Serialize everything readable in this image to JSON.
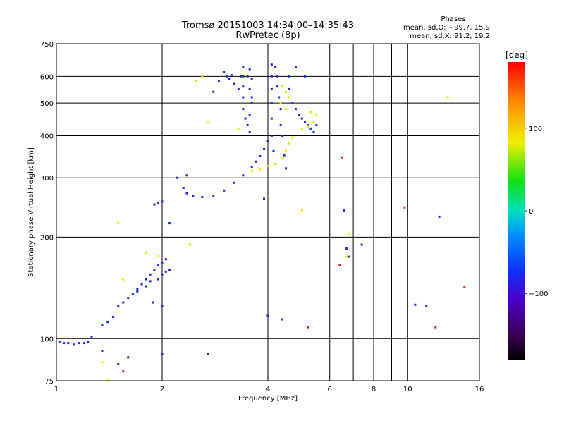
{
  "chart_data": {
    "type": "scatter",
    "title": "Tromsø 20151003 14:34:00–14:35:43",
    "subtitle": "RwPretec (8p)",
    "xlabel": "Frequency [MHz]",
    "ylabel": "Stationary phase Virtual Height [km]",
    "x_scale": "log",
    "y_scale": "log",
    "xlim": [
      1,
      16
    ],
    "ylim": [
      75,
      750
    ],
    "x_ticks": [
      1,
      2,
      4,
      6,
      8,
      10,
      16
    ],
    "x_tick_labels": [
      "1",
      "2",
      "4",
      "6",
      "8",
      "10",
      "16"
    ],
    "x_minor_lines": [
      7,
      9
    ],
    "y_ticks": [
      75,
      100,
      200,
      300,
      400,
      500,
      600,
      750
    ],
    "y_tick_labels": [
      "75",
      "100",
      "200",
      "300",
      "400",
      "500",
      "600",
      "750"
    ],
    "grid": true,
    "legend": {
      "header": "Phases",
      "lines": [
        "mean, sd,O: −99.7, 15.9",
        "mean, sd,X:  91.2, 19.2"
      ]
    },
    "colorbar": {
      "label": "[deg]",
      "range": [
        -180,
        180
      ],
      "ticks": [
        100,
        0,
        -100
      ],
      "tick_labels": [
        "100",
        "0",
        "−100"
      ]
    },
    "series": [
      {
        "phase": "O",
        "color": "#1a2ee0",
        "points": [
          [
            1.02,
            98
          ],
          [
            1.05,
            97
          ],
          [
            1.08,
            97
          ],
          [
            1.12,
            96
          ],
          [
            1.16,
            97
          ],
          [
            1.2,
            97
          ],
          [
            1.23,
            98
          ],
          [
            1.26,
            101
          ],
          [
            1.35,
            110
          ],
          [
            1.4,
            112
          ],
          [
            1.45,
            116
          ],
          [
            1.5,
            125
          ],
          [
            1.55,
            128
          ],
          [
            1.6,
            132
          ],
          [
            1.65,
            136
          ],
          [
            1.7,
            140
          ],
          [
            1.75,
            145
          ],
          [
            1.8,
            150
          ],
          [
            1.85,
            155
          ],
          [
            1.9,
            160
          ],
          [
            1.95,
            165
          ],
          [
            2.0,
            168
          ],
          [
            2.05,
            172
          ],
          [
            1.7,
            138
          ],
          [
            1.8,
            143
          ],
          [
            1.85,
            148
          ],
          [
            1.95,
            150
          ],
          [
            2.0,
            155
          ],
          [
            2.05,
            158
          ],
          [
            2.1,
            160
          ],
          [
            1.88,
            128
          ],
          [
            2.0,
            125
          ],
          [
            1.9,
            250
          ],
          [
            1.95,
            252
          ],
          [
            2.0,
            255
          ],
          [
            2.3,
            280
          ],
          [
            2.35,
            270
          ],
          [
            2.45,
            265
          ],
          [
            2.6,
            263
          ],
          [
            2.8,
            265
          ],
          [
            3.0,
            275
          ],
          [
            3.2,
            290
          ],
          [
            3.4,
            305
          ],
          [
            3.6,
            322
          ],
          [
            3.7,
            335
          ],
          [
            3.8,
            348
          ],
          [
            3.9,
            365
          ],
          [
            4.0,
            385
          ],
          [
            3.4,
            640
          ],
          [
            3.4,
            600
          ],
          [
            3.4,
            560
          ],
          [
            3.4,
            520
          ],
          [
            3.4,
            480
          ],
          [
            3.45,
            450
          ],
          [
            3.5,
            430
          ],
          [
            3.55,
            410
          ],
          [
            3.55,
            630
          ],
          [
            3.6,
            590
          ],
          [
            3.55,
            550
          ],
          [
            3.6,
            500
          ],
          [
            3.55,
            460
          ],
          [
            3.0,
            620
          ],
          [
            3.1,
            590
          ],
          [
            3.2,
            570
          ],
          [
            3.3,
            550
          ],
          [
            3.35,
            600
          ],
          [
            3.5,
            600
          ],
          [
            3.6,
            520
          ],
          [
            2.9,
            580
          ],
          [
            3.05,
            600
          ],
          [
            3.15,
            605
          ],
          [
            2.8,
            540
          ],
          [
            4.1,
            650
          ],
          [
            4.1,
            600
          ],
          [
            4.1,
            550
          ],
          [
            4.1,
            500
          ],
          [
            4.1,
            450
          ],
          [
            4.1,
            400
          ],
          [
            4.15,
            360
          ],
          [
            4.2,
            330
          ],
          [
            4.2,
            640
          ],
          [
            4.25,
            600
          ],
          [
            4.25,
            560
          ],
          [
            4.3,
            520
          ],
          [
            4.35,
            480
          ],
          [
            4.35,
            430
          ],
          [
            4.4,
            400
          ],
          [
            4.45,
            350
          ],
          [
            4.5,
            320
          ],
          [
            4.6,
            550
          ],
          [
            4.7,
            500
          ],
          [
            4.8,
            480
          ],
          [
            4.9,
            460
          ],
          [
            5.0,
            450
          ],
          [
            5.1,
            440
          ],
          [
            5.2,
            430
          ],
          [
            5.3,
            420
          ],
          [
            5.4,
            410
          ],
          [
            5.5,
            430
          ],
          [
            4.6,
            600
          ],
          [
            4.8,
            640
          ],
          [
            5.1,
            600
          ],
          [
            2.2,
            300
          ],
          [
            2.35,
            305
          ],
          [
            3.9,
            260
          ],
          [
            6.6,
            240
          ],
          [
            6.7,
            185
          ],
          [
            6.8,
            175
          ],
          [
            7.4,
            190
          ],
          [
            12.3,
            230
          ],
          [
            11.3,
            125
          ],
          [
            10.5,
            126
          ],
          [
            4.0,
            117
          ],
          [
            4.4,
            114
          ],
          [
            1.35,
            92
          ],
          [
            1.5,
            84
          ],
          [
            1.6,
            88
          ],
          [
            2.0,
            90
          ],
          [
            2.7,
            90
          ],
          [
            2.1,
            220
          ]
        ]
      },
      {
        "phase": "X",
        "color": "#e8e800",
        "points": [
          [
            3.6,
            315
          ],
          [
            3.8,
            318
          ],
          [
            4.0,
            325
          ],
          [
            4.2,
            330
          ],
          [
            4.4,
            345
          ],
          [
            4.5,
            360
          ],
          [
            4.6,
            380
          ],
          [
            4.7,
            395
          ],
          [
            4.4,
            560
          ],
          [
            4.5,
            540
          ],
          [
            4.6,
            520
          ],
          [
            4.35,
            500
          ],
          [
            4.5,
            480
          ],
          [
            5.0,
            420
          ],
          [
            5.2,
            425
          ],
          [
            5.4,
            440
          ],
          [
            5.5,
            460
          ],
          [
            5.3,
            470
          ],
          [
            3.3,
            420
          ],
          [
            2.7,
            440
          ],
          [
            2.6,
            600
          ],
          [
            2.5,
            580
          ],
          [
            1.5,
            220
          ],
          [
            1.8,
            180
          ],
          [
            1.95,
            176
          ],
          [
            1.55,
            150
          ],
          [
            1.35,
            85
          ],
          [
            1.4,
            75
          ],
          [
            2.4,
            190
          ],
          [
            6.8,
            205
          ],
          [
            6.7,
            175
          ],
          [
            5.0,
            240
          ],
          [
            13.0,
            520
          ]
        ]
      },
      {
        "phase": "other",
        "color": "#e8281a",
        "points": [
          [
            6.5,
            345
          ],
          [
            9.8,
            245
          ],
          [
            6.4,
            165
          ],
          [
            12.0,
            108
          ],
          [
            14.5,
            142
          ],
          [
            5.2,
            108
          ],
          [
            1.55,
            80
          ]
        ]
      }
    ]
  }
}
